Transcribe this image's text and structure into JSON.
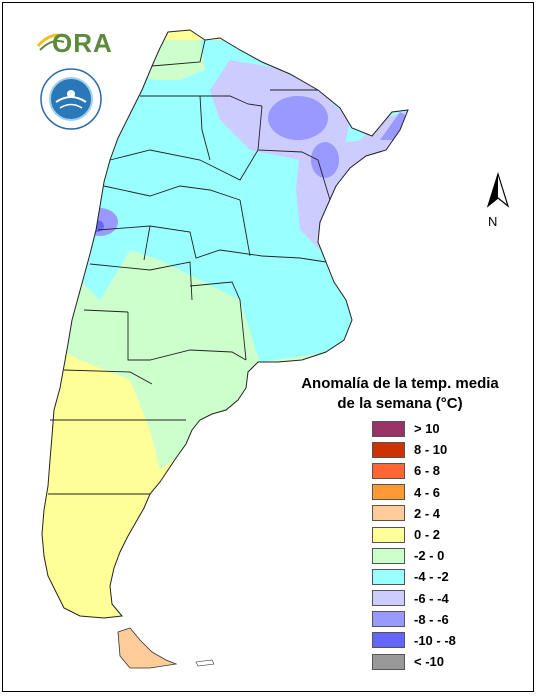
{
  "header": {
    "logo_text": "ORA",
    "logo_icon": "ora-logo-icon",
    "seal_icon": "smn-seal-icon"
  },
  "compass": {
    "label": "N",
    "icon": "north-arrow-icon"
  },
  "legend": {
    "title_line1": "Anomalía de la temp. media",
    "title_line2": "de la semana (°C)",
    "items": [
      {
        "label": "> 10",
        "color": "#993366"
      },
      {
        "label": "8 - 10",
        "color": "#cc3300"
      },
      {
        "label": "6 - 8",
        "color": "#ff6633"
      },
      {
        "label": "4 - 6",
        "color": "#ff9933"
      },
      {
        "label": "2 - 4",
        "color": "#ffcc99"
      },
      {
        "label": "0 - 2",
        "color": "#ffff99"
      },
      {
        "label": "-2 - 0",
        "color": "#ccffcc"
      },
      {
        "label": "-4 - -2",
        "color": "#99ffff"
      },
      {
        "label": "-6 - -4",
        "color": "#ccccff"
      },
      {
        "label": "-8 - -6",
        "color": "#9999ff"
      },
      {
        "label": "-10 - -8",
        "color": "#6666ff"
      },
      {
        "label": "< -10",
        "color": "#999999"
      }
    ]
  }
}
